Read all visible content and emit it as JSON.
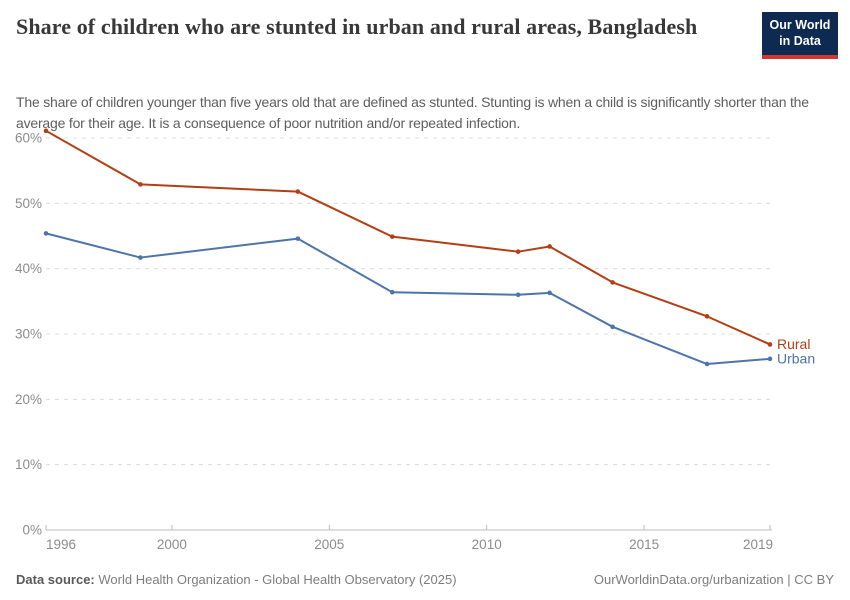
{
  "logo": {
    "line1": "Our World",
    "line2": "in Data",
    "bg_color": "#0E2A52",
    "accent_color": "#D3362D"
  },
  "chart_data": {
    "type": "line",
    "title": "Share of children who are stunted in urban and rural areas, Bangladesh",
    "subtitle": "The share of children younger than five years old that are defined as stunted. Stunting is when a child is significantly shorter than the average for their age. It is a consequence of poor nutrition and/or repeated infection.",
    "x": [
      1996,
      1999,
      2004,
      2007,
      2011,
      2012,
      2014,
      2017,
      2019
    ],
    "series": [
      {
        "name": "Rural",
        "color": "#B23E14",
        "values": [
          61.1,
          52.9,
          51.8,
          44.9,
          42.6,
          43.4,
          37.9,
          32.7,
          28.4
        ]
      },
      {
        "name": "Urban",
        "color": "#4D74AB",
        "values": [
          45.4,
          41.7,
          44.6,
          36.4,
          36.0,
          36.3,
          31.1,
          25.4,
          26.2
        ]
      }
    ],
    "xticks": [
      1996,
      2000,
      2005,
      2010,
      2015,
      2019
    ],
    "yticks": [
      0,
      10,
      20,
      30,
      40,
      50,
      60
    ],
    "ytick_suffix": "%",
    "xlim": [
      1996,
      2019
    ],
    "ylim": [
      0,
      62
    ],
    "grid": true,
    "legend": "end-of-line labels"
  },
  "footer": {
    "source_label": "Data source:",
    "source_text": "World Health Organization - Global Health Observatory (2025)",
    "right_text": "OurWorldinData.org/urbanization | CC BY"
  }
}
